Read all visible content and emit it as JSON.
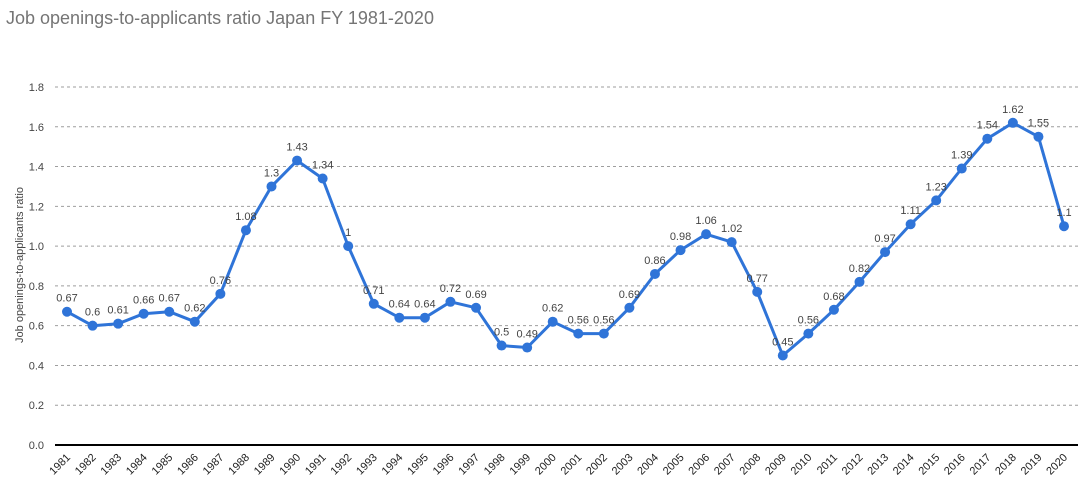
{
  "chart_data": {
    "type": "line",
    "title": "Job openings-to-applicants ratio Japan FY 1981-2020",
    "xlabel": "",
    "ylabel": "Job openings-to-applicants ratio",
    "ylim": [
      0,
      1.8
    ],
    "yticks": [
      "0.0",
      "0.2",
      "0.4",
      "0.6",
      "0.8",
      "1.0",
      "1.2",
      "1.4",
      "1.6",
      "1.8"
    ],
    "grid": true,
    "legend": "none",
    "color": "#2f74d8",
    "x": [
      "1981",
      "1982",
      "1983",
      "1984",
      "1985",
      "1986",
      "1987",
      "1988",
      "1989",
      "1990",
      "1991",
      "1992",
      "1993",
      "1994",
      "1995",
      "1996",
      "1997",
      "1998",
      "1999",
      "2000",
      "2001",
      "2002",
      "2003",
      "2004",
      "2005",
      "2006",
      "2007",
      "2008",
      "2009",
      "2010",
      "2011",
      "2012",
      "2013",
      "2014",
      "2015",
      "2016",
      "2017",
      "2018",
      "2019",
      "2020"
    ],
    "values": [
      0.67,
      0.6,
      0.61,
      0.66,
      0.67,
      0.62,
      0.76,
      1.08,
      1.3,
      1.43,
      1.34,
      1,
      0.71,
      0.64,
      0.64,
      0.72,
      0.69,
      0.5,
      0.49,
      0.62,
      0.56,
      0.56,
      0.69,
      0.86,
      0.98,
      1.06,
      1.02,
      0.77,
      0.45,
      0.56,
      0.68,
      0.82,
      0.97,
      1.11,
      1.23,
      1.39,
      1.54,
      1.62,
      1.55,
      1.1
    ],
    "labels": [
      "0.67",
      "0.6",
      "0.61",
      "0.66",
      "0.67",
      "0.62",
      "0.76",
      "1.08",
      "1.3",
      "1.43",
      "1.34",
      "1",
      "0.71",
      "0.64",
      "0.64",
      "0.72",
      "0.69",
      "0.5",
      "0.49",
      "0.62",
      "0.56",
      "0.56",
      "0.69",
      "0.86",
      "0.98",
      "1.06",
      "1.02",
      "0.77",
      "0.45",
      "0.56",
      "0.68",
      "0.82",
      "0.97",
      "1.11",
      "1.23",
      "1.39",
      "1.54",
      "1.62",
      "1.55",
      "1.1"
    ]
  }
}
